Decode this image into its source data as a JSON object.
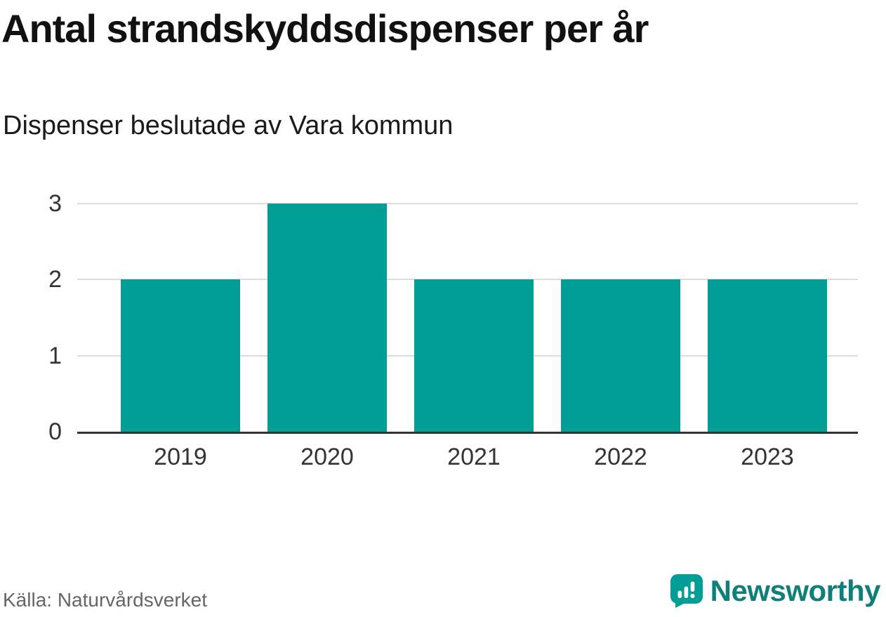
{
  "title": "Antal strandskyddsdispenser per år",
  "subtitle": "Dispenser beslutade av Vara kommun",
  "source": "Källa: Naturvårdsverket",
  "logo": {
    "text": "Newsworthy"
  },
  "colors": {
    "bar": "#009e94",
    "grid": "#dddddd",
    "axis": "#333333",
    "logo_icon": "#009e94",
    "logo_text": "#0f7f7a"
  },
  "chart_data": {
    "type": "bar",
    "title": "Antal strandskyddsdispenser per år",
    "subtitle": "Dispenser beslutade av Vara kommun",
    "categories": [
      "2019",
      "2020",
      "2021",
      "2022",
      "2023"
    ],
    "values": [
      2,
      3,
      2,
      2,
      2
    ],
    "xlabel": "",
    "ylabel": "",
    "ylim": [
      0,
      3
    ],
    "yticks": [
      0,
      1,
      2,
      3
    ],
    "grid": true,
    "legend": "none",
    "source": "Källa: Naturvårdsverket"
  }
}
